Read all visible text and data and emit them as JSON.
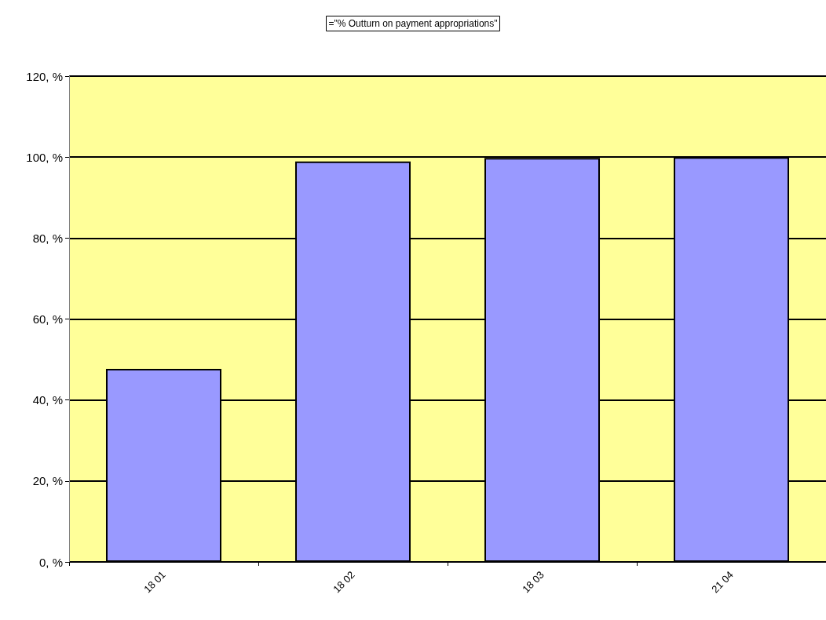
{
  "chart_data": {
    "type": "bar",
    "title": "=\"% Outturn on payment appropriations\"",
    "categories": [
      "18 01",
      "18 02",
      "18 03",
      "21 04"
    ],
    "values": [
      47.7,
      98.9,
      99.8,
      100
    ],
    "color": "#9999ff",
    "ylim": [
      0,
      120
    ],
    "yticks": [
      {
        "value": 0,
        "label": "0, %"
      },
      {
        "value": 20,
        "label": "20, %"
      },
      {
        "value": 40,
        "label": "40, %"
      },
      {
        "value": 60,
        "label": "60, %"
      },
      {
        "value": 80,
        "label": "80, %"
      },
      {
        "value": 100,
        "label": "100, %"
      },
      {
        "value": 120,
        "label": "120, %"
      }
    ],
    "grid": "y"
  }
}
